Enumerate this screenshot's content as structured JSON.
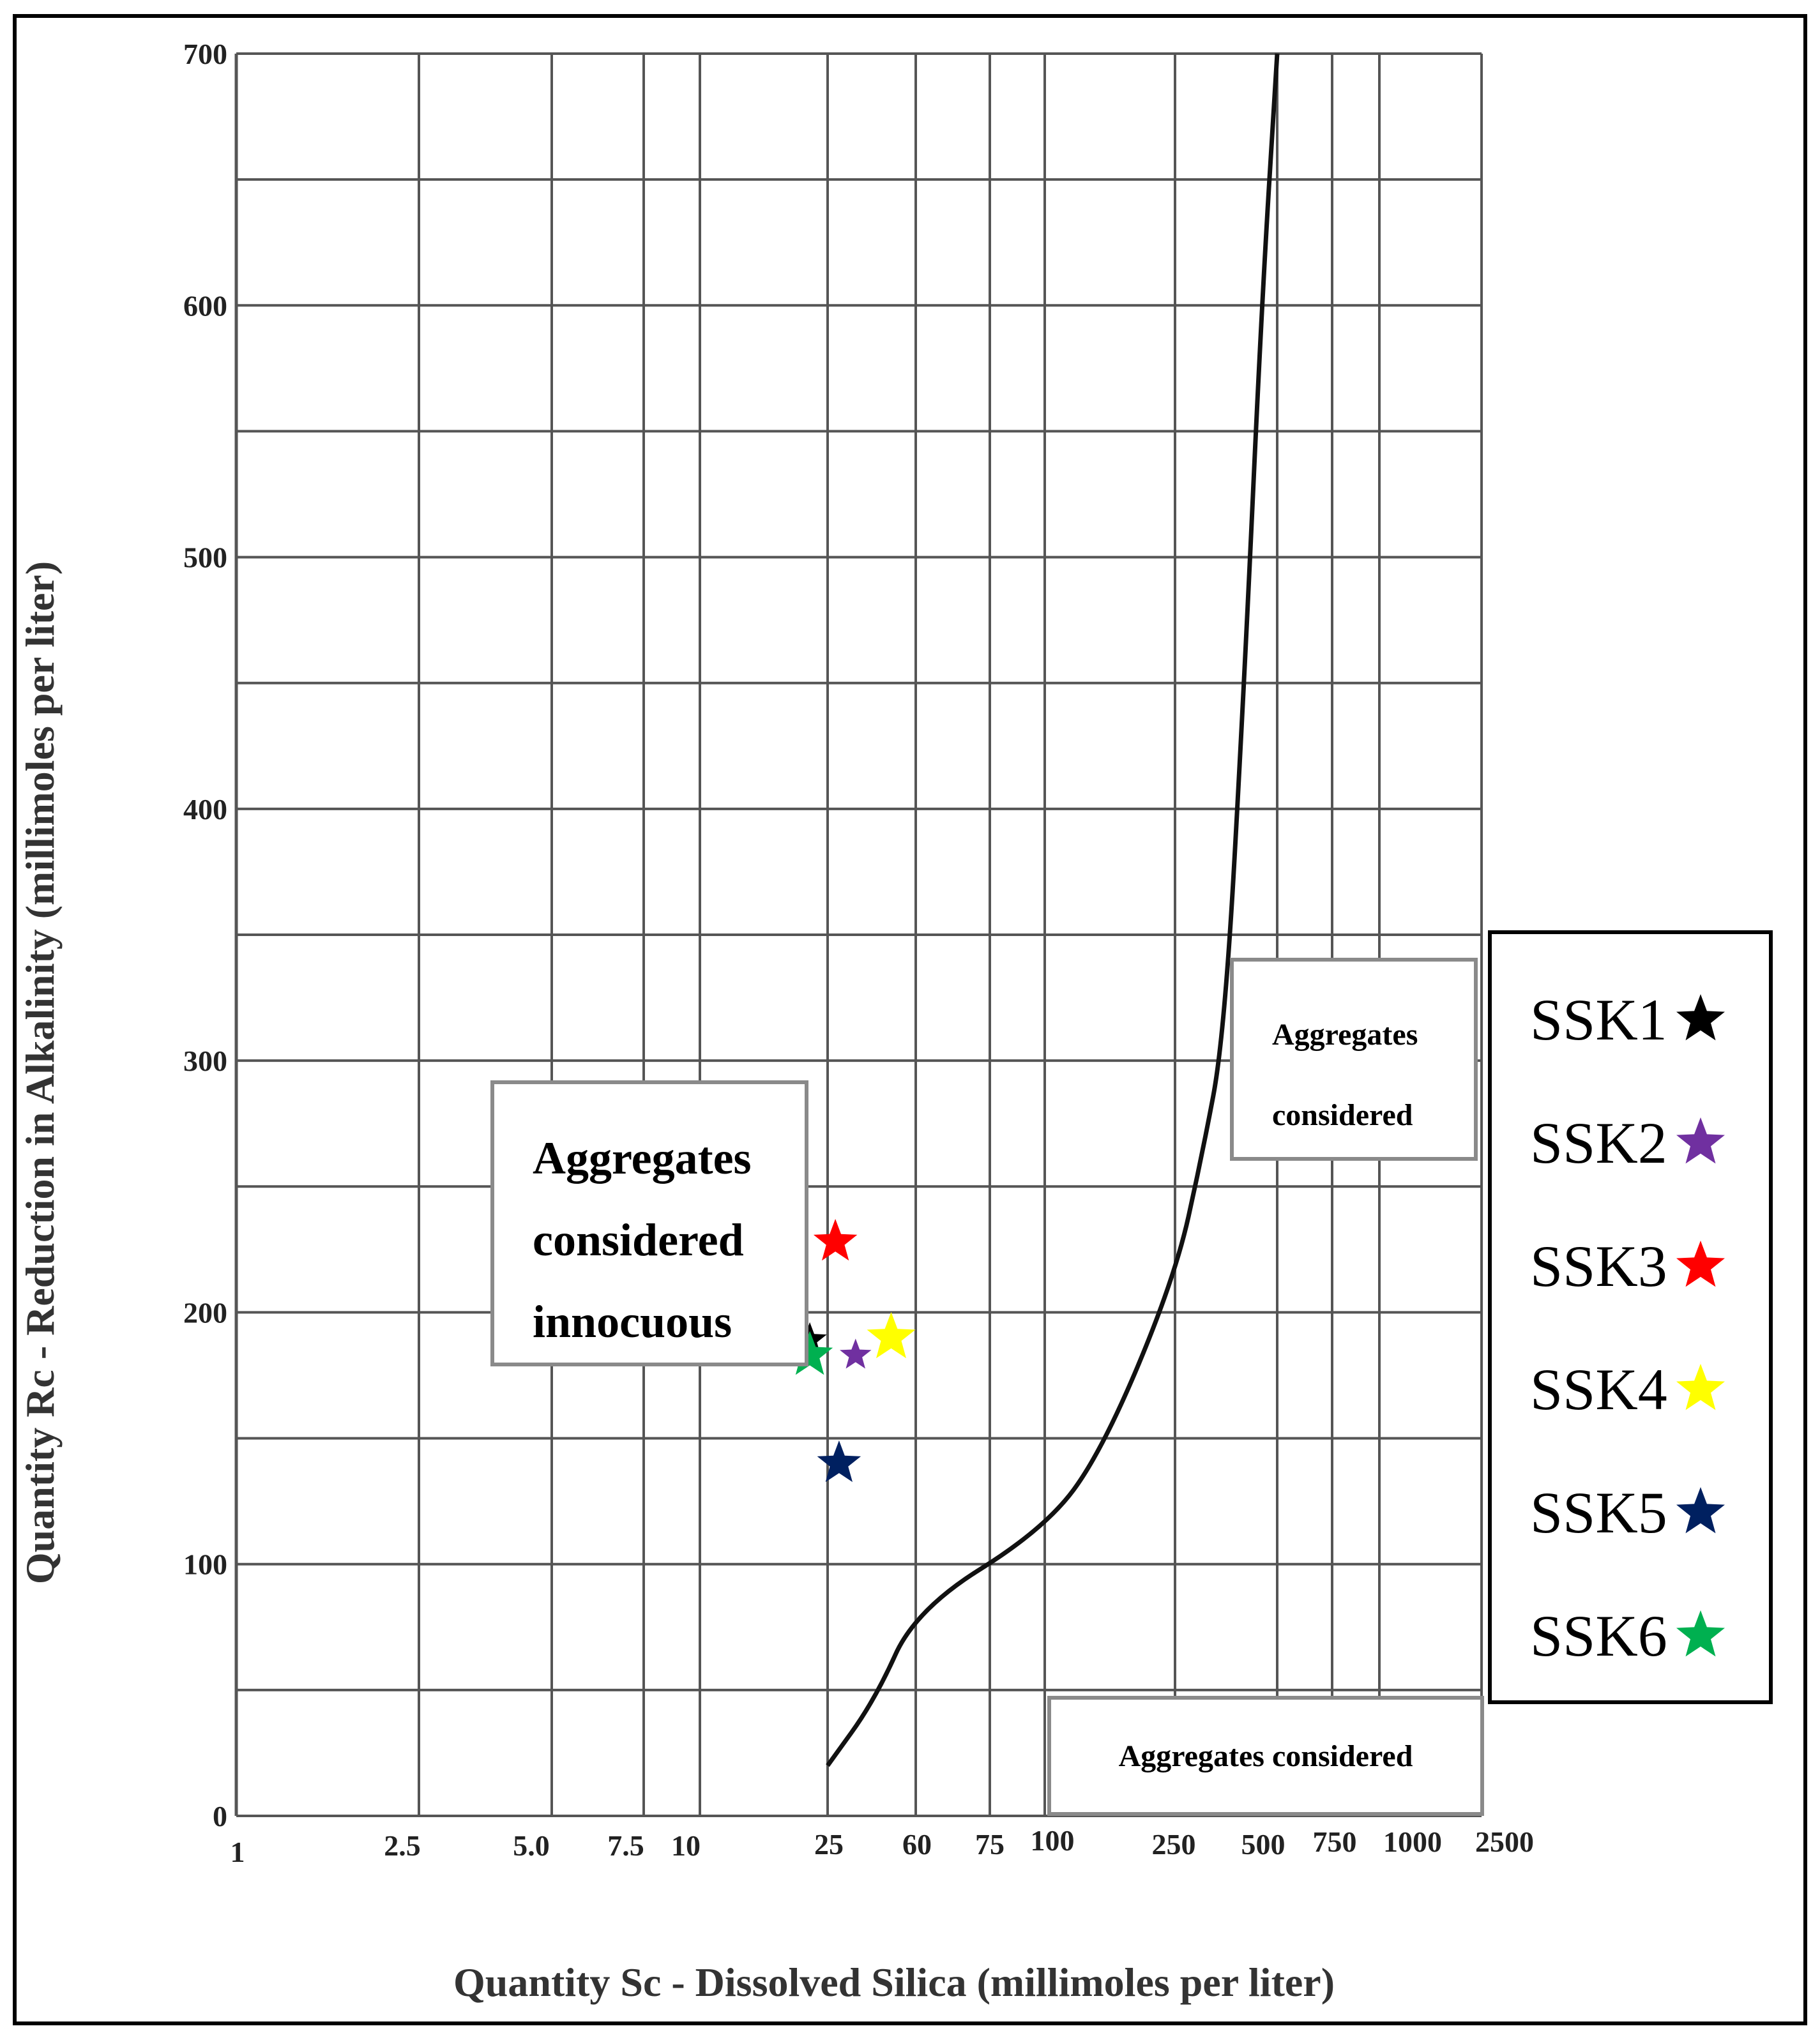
{
  "chart_data": {
    "type": "scatter",
    "xlabel": "Quantity Sc - Dissolved Silica (millimoles per liter)",
    "ylabel": "Quantity Rc - Reduction in Alkalinity (millimoles per liter)",
    "x_scale": "log",
    "x_ticks": [
      "1",
      "2.5",
      "5.0",
      "7.5",
      "10",
      "25",
      "60",
      "75",
      "100",
      "250",
      "500",
      "750",
      "1000",
      "2500"
    ],
    "y_ticks": [
      "0",
      "100",
      "200",
      "300",
      "400",
      "500",
      "600",
      "700"
    ],
    "ylim": [
      0,
      700
    ],
    "regions": {
      "innocuous": [
        "Aggregates",
        "considered",
        "innocuous"
      ],
      "deleterious": [
        "Aggregates",
        "considered"
      ],
      "potentially_deleterious": [
        "Aggregates considered"
      ]
    },
    "boundary_curve": [
      {
        "x": 25,
        "y": 20
      },
      {
        "x": 40,
        "y": 46
      },
      {
        "x": 60,
        "y": 82
      },
      {
        "x": 100,
        "y": 114
      },
      {
        "x": 150,
        "y": 145
      },
      {
        "x": 250,
        "y": 214
      },
      {
        "x": 300,
        "y": 262
      },
      {
        "x": 350,
        "y": 310
      },
      {
        "x": 400,
        "y": 450
      },
      {
        "x": 450,
        "y": 600
      },
      {
        "x": 500,
        "y": 700
      }
    ],
    "series": [
      {
        "name": "SSK1",
        "x": 22,
        "y": 189,
        "color": "#000000"
      },
      {
        "name": "SSK2",
        "x": 33,
        "y": 183,
        "color": "#7030a0"
      },
      {
        "name": "SSK3",
        "x": 27,
        "y": 228,
        "color": "#ff0000"
      },
      {
        "name": "SSK4",
        "x": 47,
        "y": 190,
        "color": "#ffff00"
      },
      {
        "name": "SSK5",
        "x": 28,
        "y": 140,
        "color": "#002060"
      },
      {
        "name": "SSK6",
        "x": 22,
        "y": 183,
        "color": "#00b050"
      }
    ]
  }
}
